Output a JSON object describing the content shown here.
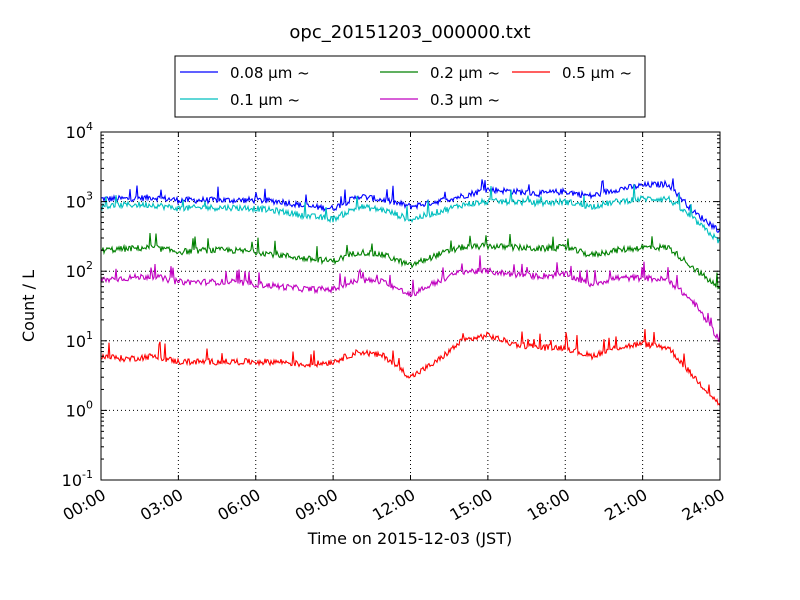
{
  "chart_data": {
    "type": "line",
    "title": "opc_20151203_000000.txt",
    "xlabel": "Time on 2015-12-03 (JST)",
    "ylabel": "Count / L",
    "yscale": "log",
    "ylim": [
      0.1,
      10000
    ],
    "xlim": [
      "00:00",
      "24:00"
    ],
    "grid": true,
    "legend_position": "top-center",
    "xticks": [
      "00:00",
      "03:00",
      "06:00",
      "09:00",
      "12:00",
      "15:00",
      "18:00",
      "21:00",
      "24:00"
    ],
    "yticks": [
      {
        "base": "10",
        "exp": "-1",
        "value": 0.1
      },
      {
        "base": "10",
        "exp": "0",
        "value": 1
      },
      {
        "base": "10",
        "exp": "1",
        "value": 10
      },
      {
        "base": "10",
        "exp": "2",
        "value": 100
      },
      {
        "base": "10",
        "exp": "3",
        "value": 1000
      },
      {
        "base": "10",
        "exp": "4",
        "value": 10000
      }
    ],
    "x": [
      "00:00",
      "01:00",
      "02:00",
      "03:00",
      "04:00",
      "05:00",
      "06:00",
      "07:00",
      "08:00",
      "09:00",
      "10:00",
      "11:00",
      "12:00",
      "13:00",
      "14:00",
      "15:00",
      "16:00",
      "17:00",
      "18:00",
      "19:00",
      "20:00",
      "21:00",
      "22:00",
      "23:00",
      "24:00"
    ],
    "series": [
      {
        "name": "0.08 μm ~",
        "color": "#0000ff",
        "values": [
          1100,
          1100,
          1150,
          1050,
          1050,
          1050,
          1050,
          1000,
          850,
          800,
          1200,
          1050,
          850,
          1000,
          1200,
          1500,
          1400,
          1300,
          1400,
          1200,
          1500,
          1700,
          1800,
          700,
          380
        ]
      },
      {
        "name": "0.1 μm ~",
        "color": "#00bfbf",
        "values": [
          850,
          900,
          900,
          800,
          820,
          820,
          800,
          720,
          620,
          560,
          850,
          750,
          550,
          700,
          900,
          1000,
          1000,
          950,
          1000,
          850,
          1000,
          1100,
          1100,
          550,
          260
        ]
      },
      {
        "name": "0.2 μm ~",
        "color": "#008000",
        "values": [
          200,
          210,
          220,
          190,
          200,
          200,
          190,
          170,
          150,
          140,
          190,
          170,
          120,
          170,
          220,
          230,
          220,
          210,
          220,
          170,
          200,
          220,
          220,
          110,
          55
        ]
      },
      {
        "name": "0.3 μm ~",
        "color": "#bf00bf",
        "values": [
          75,
          80,
          85,
          70,
          70,
          70,
          65,
          60,
          55,
          55,
          75,
          70,
          45,
          70,
          100,
          100,
          90,
          85,
          90,
          65,
          80,
          80,
          75,
          35,
          10
        ]
      },
      {
        "name": "0.5 μm ~",
        "color": "#ff0000",
        "values": [
          6,
          5.5,
          6,
          5,
          5,
          5,
          5,
          5,
          4.5,
          5,
          7,
          6,
          3,
          5,
          10,
          12,
          9,
          8,
          8,
          6,
          8,
          9,
          8,
          3,
          1.2
        ]
      }
    ]
  }
}
